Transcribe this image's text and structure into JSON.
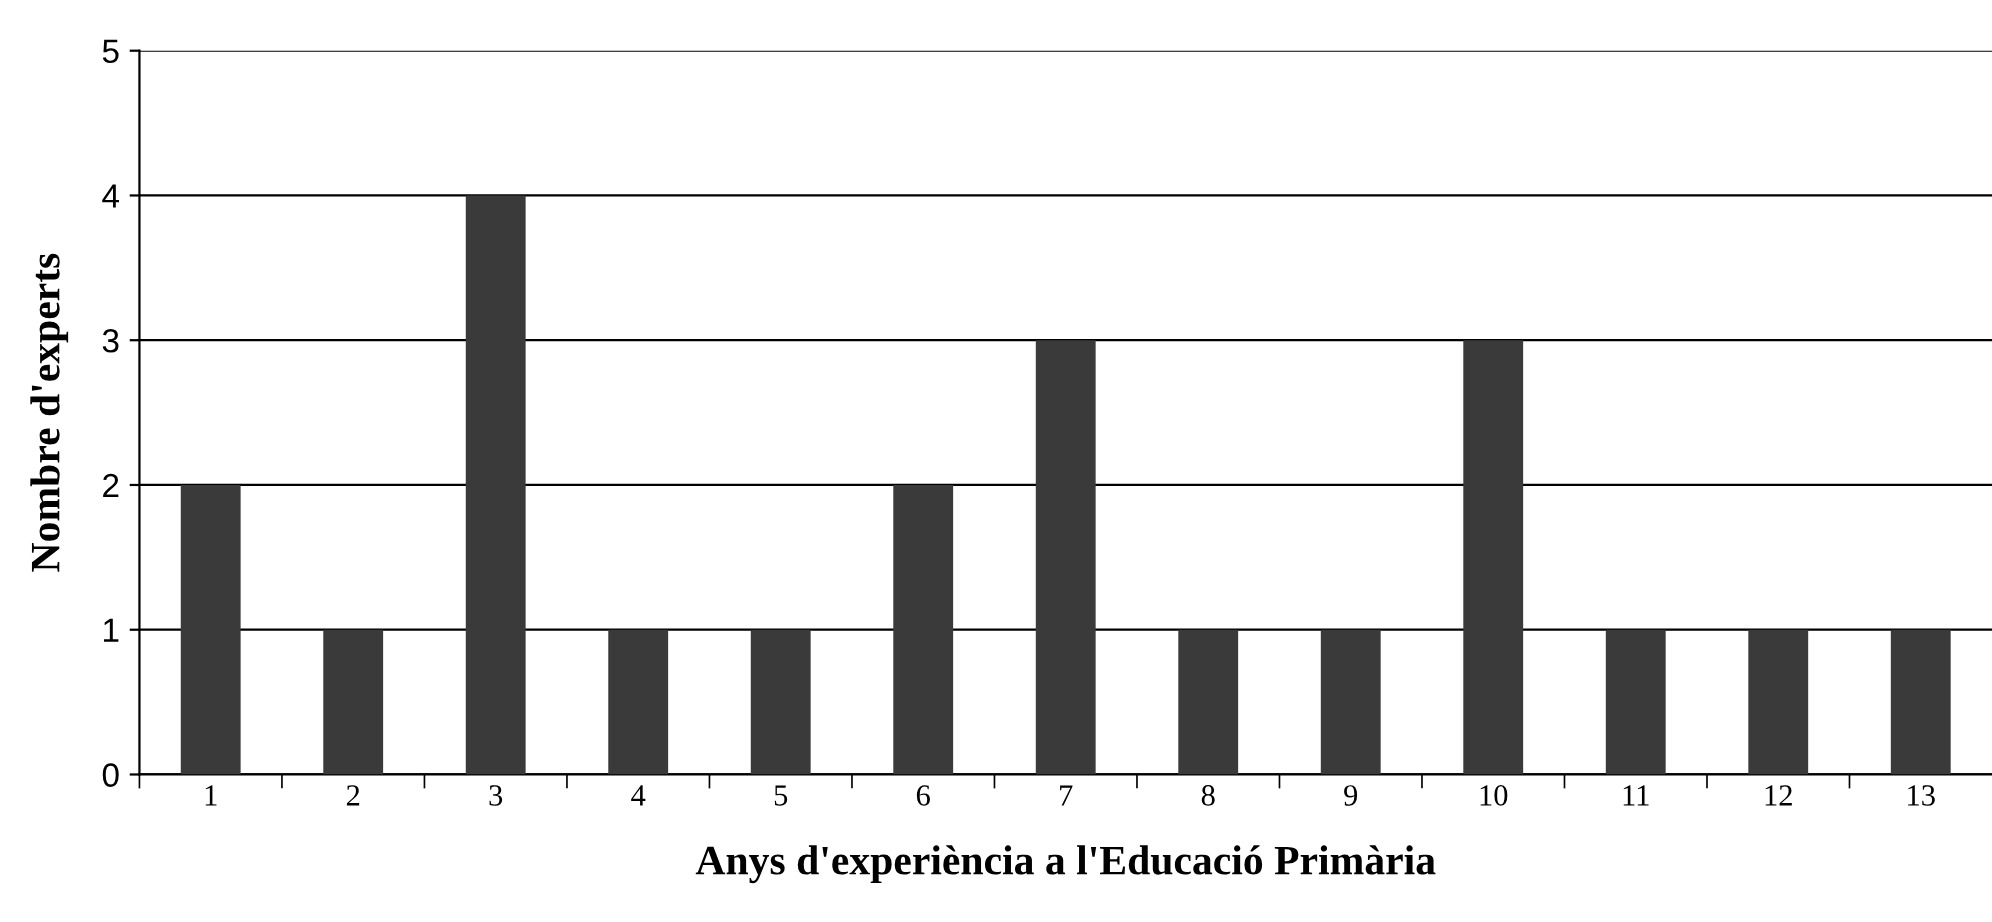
{
  "chart_data": {
    "type": "bar",
    "xlabel": "Anys d'experiència a l'Educació Primària",
    "ylabel": "Nombre d'experts",
    "categories": [
      "1",
      "2",
      "3",
      "4",
      "5",
      "6",
      "7",
      "8",
      "9",
      "10",
      "11",
      "12",
      "13"
    ],
    "values": [
      2,
      1,
      4,
      1,
      1,
      2,
      3,
      1,
      1,
      3,
      1,
      1,
      1
    ],
    "color": "#3a3a3a",
    "ylim": [
      0,
      5
    ],
    "yticks": [
      0,
      1,
      2,
      3,
      4,
      5
    ],
    "grid": "y",
    "legend": false
  }
}
